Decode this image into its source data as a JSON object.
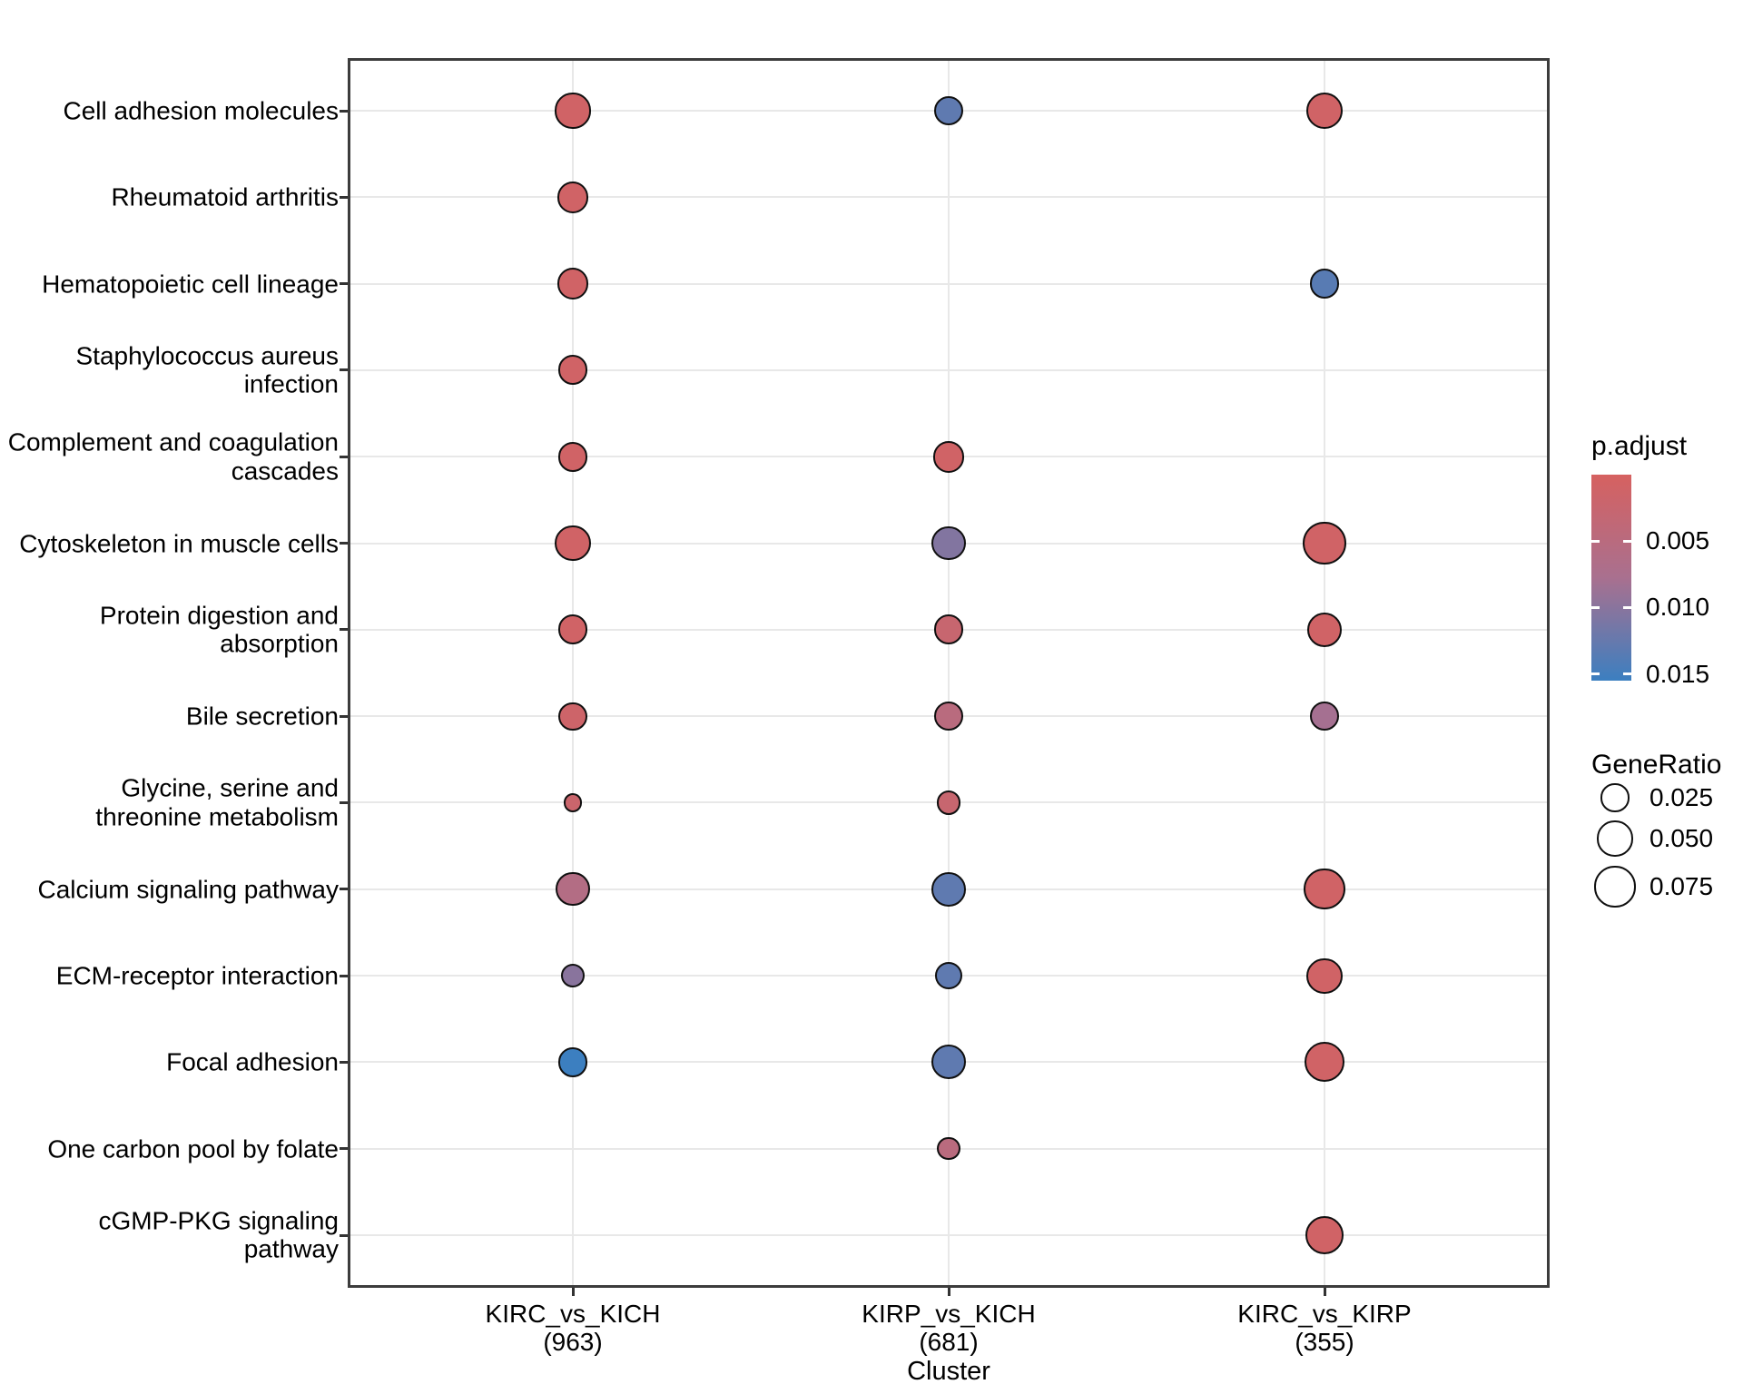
{
  "chart_data": {
    "type": "scatter",
    "subtype": "enrichment-dotplot",
    "title": "",
    "xlabel": "Cluster",
    "ylabel": "",
    "grid": true,
    "legend_position": "right",
    "x_categories": [
      {
        "name": "KIRC_vs_KICH",
        "label": "KIRC_vs_KICH",
        "count_label": "(963)"
      },
      {
        "name": "KIRP_vs_KICH",
        "label": "KIRP_vs_KICH",
        "count_label": "(681)"
      },
      {
        "name": "KIRC_vs_KIRP",
        "label": "KIRC_vs_KIRP",
        "count_label": "(355)"
      }
    ],
    "y_categories": [
      {
        "name": "Cell adhesion molecules",
        "label": "Cell adhesion molecules"
      },
      {
        "name": "Rheumatoid arthritis",
        "label": "Rheumatoid arthritis"
      },
      {
        "name": "Hematopoietic cell lineage",
        "label": "Hematopoietic cell lineage"
      },
      {
        "name": "Staphylococcus aureus infection",
        "label": "Staphylococcus aureus\ninfection"
      },
      {
        "name": "Complement and coagulation cascades",
        "label": "Complement and coagulation\ncascades"
      },
      {
        "name": "Cytoskeleton in muscle cells",
        "label": "Cytoskeleton in muscle cells"
      },
      {
        "name": "Protein digestion and absorption",
        "label": "Protein digestion and\nabsorption"
      },
      {
        "name": "Bile secretion",
        "label": "Bile secretion"
      },
      {
        "name": "Glycine, serine and threonine metabolism",
        "label": "Glycine, serine and\nthreonine metabolism"
      },
      {
        "name": "Calcium signaling pathway",
        "label": "Calcium signaling pathway"
      },
      {
        "name": "ECM-receptor interaction",
        "label": "ECM-receptor interaction"
      },
      {
        "name": "Focal adhesion",
        "label": "Focal adhesion"
      },
      {
        "name": "One carbon pool by folate",
        "label": "One carbon pool by folate"
      },
      {
        "name": "cGMP-PKG signaling pathway",
        "label": "cGMP-PKG signaling pathway"
      }
    ],
    "points": [
      {
        "cluster": "KIRC_vs_KICH",
        "pathway": "Cell adhesion molecules",
        "gene_ratio": 0.05,
        "p_adjust": 0.001
      },
      {
        "cluster": "KIRC_vs_KICH",
        "pathway": "Rheumatoid arthritis",
        "gene_ratio": 0.036,
        "p_adjust": 0.001
      },
      {
        "cluster": "KIRC_vs_KICH",
        "pathway": "Hematopoietic cell lineage",
        "gene_ratio": 0.036,
        "p_adjust": 0.001
      },
      {
        "cluster": "KIRC_vs_KICH",
        "pathway": "Staphylococcus aureus infection",
        "gene_ratio": 0.03,
        "p_adjust": 0.001
      },
      {
        "cluster": "KIRC_vs_KICH",
        "pathway": "Complement and coagulation cascades",
        "gene_ratio": 0.03,
        "p_adjust": 0.001
      },
      {
        "cluster": "KIRC_vs_KICH",
        "pathway": "Cytoskeleton in muscle cells",
        "gene_ratio": 0.05,
        "p_adjust": 0.001
      },
      {
        "cluster": "KIRC_vs_KICH",
        "pathway": "Protein digestion and absorption",
        "gene_ratio": 0.03,
        "p_adjust": 0.001
      },
      {
        "cluster": "KIRC_vs_KICH",
        "pathway": "Bile secretion",
        "gene_ratio": 0.025,
        "p_adjust": 0.0015
      },
      {
        "cluster": "KIRC_vs_KICH",
        "pathway": "Glycine, serine and threonine metabolism",
        "gene_ratio": 0.0055,
        "p_adjust": 0.002
      },
      {
        "cluster": "KIRC_vs_KICH",
        "pathway": "Calcium signaling pathway",
        "gene_ratio": 0.043,
        "p_adjust": 0.006
      },
      {
        "cluster": "KIRC_vs_KICH",
        "pathway": "ECM-receptor interaction",
        "gene_ratio": 0.015,
        "p_adjust": 0.01
      },
      {
        "cluster": "KIRC_vs_KICH",
        "pathway": "Focal adhesion",
        "gene_ratio": 0.03,
        "p_adjust": 0.0155
      },
      {
        "cluster": "KIRP_vs_KICH",
        "pathway": "Cell adhesion molecules",
        "gene_ratio": 0.03,
        "p_adjust": 0.013
      },
      {
        "cluster": "KIRP_vs_KICH",
        "pathway": "Complement and coagulation cascades",
        "gene_ratio": 0.036,
        "p_adjust": 0.001
      },
      {
        "cluster": "KIRP_vs_KICH",
        "pathway": "Cytoskeleton in muscle cells",
        "gene_ratio": 0.043,
        "p_adjust": 0.0105
      },
      {
        "cluster": "KIRP_vs_KICH",
        "pathway": "Protein digestion and absorption",
        "gene_ratio": 0.03,
        "p_adjust": 0.0025
      },
      {
        "cluster": "KIRP_vs_KICH",
        "pathway": "Bile secretion",
        "gene_ratio": 0.027,
        "p_adjust": 0.005
      },
      {
        "cluster": "KIRP_vs_KICH",
        "pathway": "Glycine, serine and threonine metabolism",
        "gene_ratio": 0.015,
        "p_adjust": 0.0025
      },
      {
        "cluster": "KIRP_vs_KICH",
        "pathway": "Calcium signaling pathway",
        "gene_ratio": 0.046,
        "p_adjust": 0.013
      },
      {
        "cluster": "KIRP_vs_KICH",
        "pathway": "ECM-receptor interaction",
        "gene_ratio": 0.022,
        "p_adjust": 0.013
      },
      {
        "cluster": "KIRP_vs_KICH",
        "pathway": "Focal adhesion",
        "gene_ratio": 0.046,
        "p_adjust": 0.013
      },
      {
        "cluster": "KIRP_vs_KICH",
        "pathway": "One carbon pool by folate",
        "gene_ratio": 0.012,
        "p_adjust": 0.005
      },
      {
        "cluster": "KIRC_vs_KIRP",
        "pathway": "Cell adhesion molecules",
        "gene_ratio": 0.054,
        "p_adjust": 0.001
      },
      {
        "cluster": "KIRC_vs_KIRP",
        "pathway": "Hematopoietic cell lineage",
        "gene_ratio": 0.03,
        "p_adjust": 0.0135
      },
      {
        "cluster": "KIRC_vs_KIRP",
        "pathway": "Cytoskeleton in muscle cells",
        "gene_ratio": 0.084,
        "p_adjust": 0.001
      },
      {
        "cluster": "KIRC_vs_KIRP",
        "pathway": "Protein digestion and absorption",
        "gene_ratio": 0.046,
        "p_adjust": 0.001
      },
      {
        "cluster": "KIRC_vs_KIRP",
        "pathway": "Bile secretion",
        "gene_ratio": 0.027,
        "p_adjust": 0.008
      },
      {
        "cluster": "KIRC_vs_KIRP",
        "pathway": "Calcium signaling pathway",
        "gene_ratio": 0.075,
        "p_adjust": 0.001
      },
      {
        "cluster": "KIRC_vs_KIRP",
        "pathway": "ECM-receptor interaction",
        "gene_ratio": 0.05,
        "p_adjust": 0.001
      },
      {
        "cluster": "KIRC_vs_KIRP",
        "pathway": "Focal adhesion",
        "gene_ratio": 0.07,
        "p_adjust": 0.001
      },
      {
        "cluster": "KIRC_vs_KIRP",
        "pathway": "cGMP-PKG signaling pathway",
        "gene_ratio": 0.062,
        "p_adjust": 0.001
      }
    ],
    "color_scale": {
      "label": "p.adjust",
      "stops": [
        "#d66160",
        "#a9708f",
        "#3c7fc0"
      ],
      "domain": [
        0.0,
        0.0155
      ],
      "ticks": [
        0.005,
        0.01,
        0.015
      ],
      "tick_labels": [
        "0.005",
        "0.010",
        "0.015"
      ]
    },
    "size_scale": {
      "label": "GeneRatio",
      "legend_values": [
        0.025,
        0.05,
        0.075
      ],
      "legend_labels": [
        "0.025",
        "0.050",
        "0.075"
      ]
    }
  },
  "style_colors": {
    "panel_border": "#3c3c3c",
    "gridline": "#e8e8e8",
    "tick_mark": "#333333",
    "dot_stroke": "#101010",
    "background": "#ffffff"
  }
}
